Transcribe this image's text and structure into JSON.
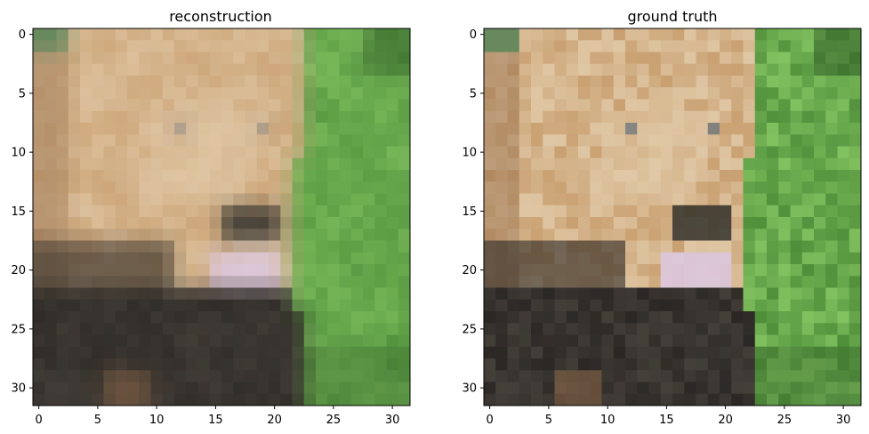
{
  "panels": [
    {
      "id": "left",
      "title": "reconstruction",
      "xticks": [
        "0",
        "5",
        "10",
        "15",
        "20",
        "25",
        "30"
      ],
      "yticks": [
        "0",
        "5",
        "10",
        "15",
        "20",
        "25",
        "30"
      ]
    },
    {
      "id": "right",
      "title": "ground truth",
      "xticks": [
        "0",
        "5",
        "10",
        "15",
        "20",
        "25",
        "30"
      ],
      "yticks": [
        "0",
        "5",
        "10",
        "15",
        "20",
        "25",
        "30"
      ]
    }
  ],
  "palette": {
    "background_green": "#4f8f3a",
    "light_green": "#8fcf6a",
    "dark_green": "#2f5a25",
    "fur": "#c9a071",
    "fur_light": "#e2cbaa",
    "fur_dark": "#9a7350",
    "shadow": "#2b2724",
    "tongue": "#dcc8df",
    "nose": "#1d1f1e",
    "eye": "#6f747a"
  },
  "image": {
    "grid": [
      32,
      32
    ],
    "description_only_visual": true
  }
}
